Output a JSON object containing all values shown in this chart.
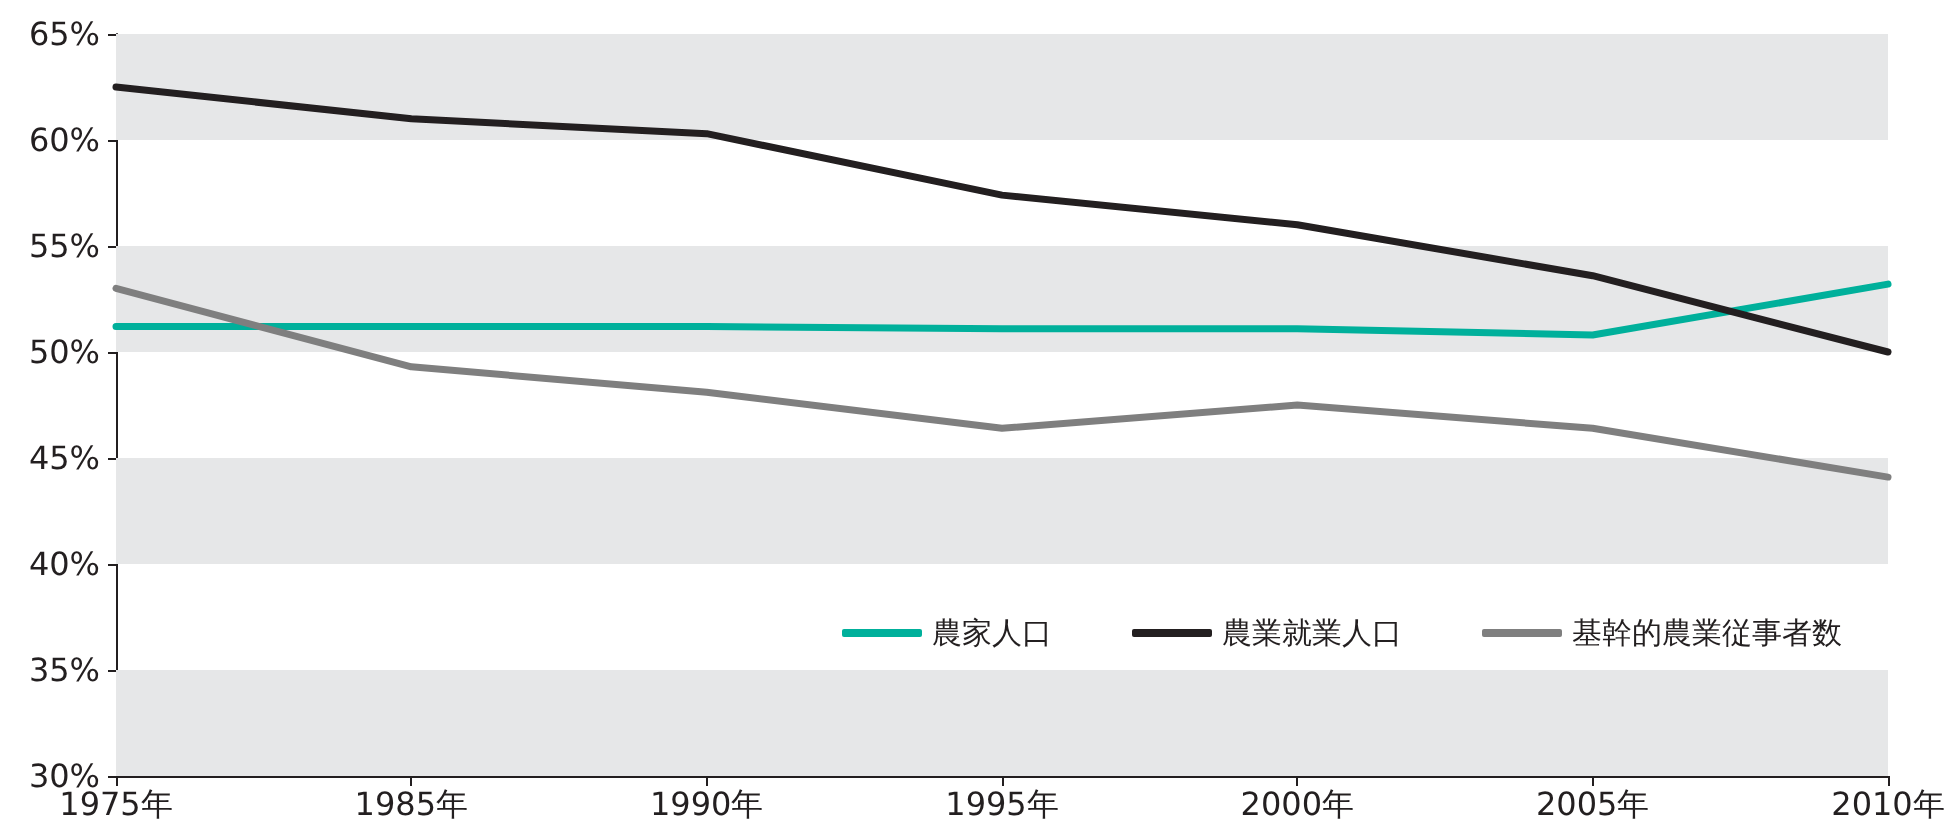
{
  "chart_data": {
    "type": "line",
    "categories": [
      "1975年",
      "1985年",
      "1990年",
      "1995年",
      "2000年",
      "2005年",
      "2010年"
    ],
    "series": [
      {
        "name": "農家人口",
        "color": "#00b09b",
        "values": [
          51.2,
          51.2,
          51.2,
          51.1,
          51.1,
          50.8,
          53.2
        ]
      },
      {
        "name": "農業就業人口",
        "color": "#231f20",
        "values": [
          62.5,
          61.0,
          60.3,
          57.4,
          56.0,
          53.6,
          50.0
        ]
      },
      {
        "name": "基幹的農業従事者数",
        "color": "#7f7f7f",
        "values": [
          53.0,
          49.3,
          48.1,
          46.4,
          47.5,
          46.4,
          44.1
        ]
      }
    ],
    "ylim": [
      30,
      65
    ],
    "yticks": [
      {
        "value": 30,
        "label": "30%"
      },
      {
        "value": 35,
        "label": "35%"
      },
      {
        "value": 40,
        "label": "40%"
      },
      {
        "value": 45,
        "label": "45%"
      },
      {
        "value": 50,
        "label": "50%"
      },
      {
        "value": 55,
        "label": "55%"
      },
      {
        "value": 60,
        "label": "60%"
      },
      {
        "value": 65,
        "label": "65%"
      }
    ],
    "bands": [
      {
        "axis": "y",
        "from": 30,
        "to": 35,
        "color": "#e6e7e8"
      },
      {
        "axis": "y",
        "from": 40,
        "to": 45,
        "color": "#e6e7e8"
      },
      {
        "axis": "y",
        "from": 50,
        "to": 55,
        "color": "#e6e7e8"
      },
      {
        "axis": "y",
        "from": 60,
        "to": 65,
        "color": "#e6e7e8"
      }
    ],
    "legend": "bottom right",
    "marker": "none",
    "line_style": "solid"
  }
}
